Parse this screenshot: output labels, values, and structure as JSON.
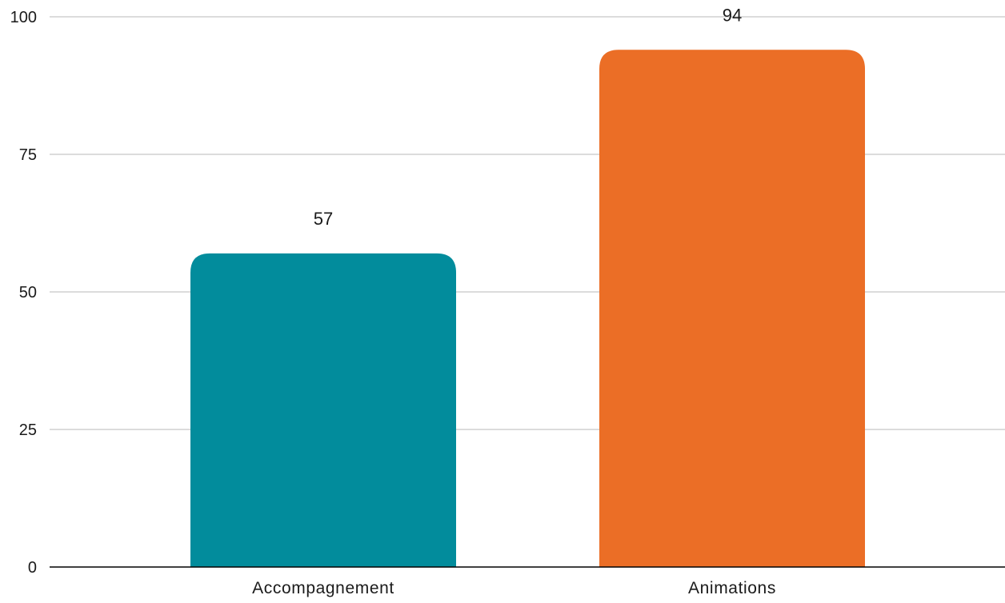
{
  "chart_data": {
    "type": "bar",
    "title": "",
    "xlabel": "",
    "ylabel": "",
    "categories": [
      "Accompagnement",
      "Animations"
    ],
    "values": [
      57,
      94
    ],
    "colors": [
      "#028C9C",
      "#EB6E26"
    ],
    "data_labels": [
      "57",
      "94"
    ],
    "ylim": [
      0,
      100
    ],
    "yticks": [
      0,
      25,
      50,
      75,
      100
    ],
    "ytick_labels": [
      "0",
      "25",
      "50",
      "75",
      "100"
    ],
    "grid": "horizontal",
    "legend": "none",
    "gridline_color": "#c8c8c8",
    "axis_color": "#000000"
  }
}
